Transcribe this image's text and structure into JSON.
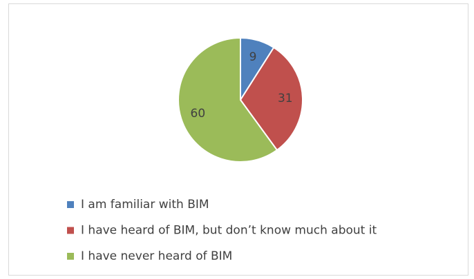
{
  "chart_data": {
    "type": "pie",
    "categories": [
      "I am familiar with BIM",
      "I have heard of BIM, but don’t know much about it",
      "I have never heard of BIM"
    ],
    "values": [
      9,
      31,
      60
    ],
    "colors": [
      "#4f81bd",
      "#c0504d",
      "#9bbb59"
    ],
    "legend": "bottom"
  }
}
